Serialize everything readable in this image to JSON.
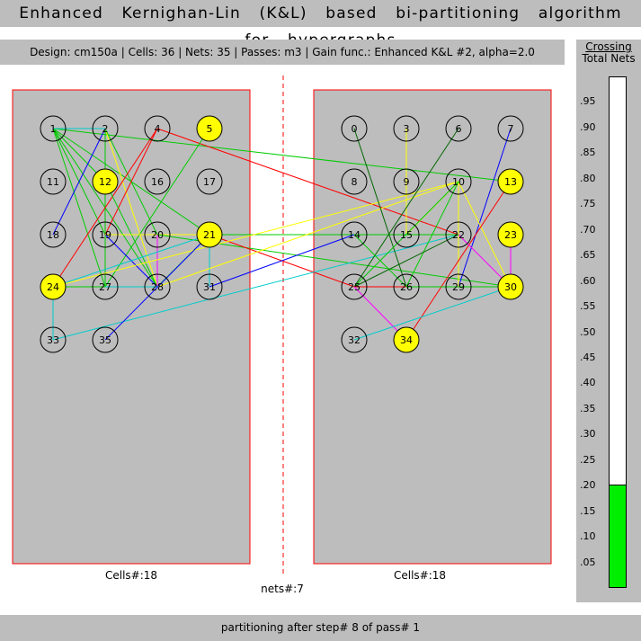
{
  "title": "Enhanced Kernighan-Lin (K&L) based bi-partitioning algorithm for hypergraphs",
  "info": "Design: cm150a  |  Cells: 36  |  Nets: 35  |  Passes: m3  |  Gain func.: Enhanced K&L #2, alpha=2.0",
  "side": {
    "title_top": "Crossing",
    "title_bottom": "Total Nets",
    "ratio": 0.2,
    "ticks": [
      ".95",
      ".90",
      ".85",
      ".80",
      ".75",
      ".70",
      ".65",
      ".60",
      ".55",
      ".50",
      ".45",
      ".40",
      ".35",
      ".30",
      ".25",
      ".20",
      ".15",
      ".10",
      ".05"
    ]
  },
  "left_count": "Cells#:18",
  "right_count": "Cells#:18",
  "nets_label": "nets#:7",
  "footer": "partitioning after step# 8 of pass# 1",
  "colors": {
    "panel": "#bdbdbd",
    "highlight": "#ffff00",
    "border": "#ff0000",
    "gauge": "#00ee00"
  },
  "cells": [
    {
      "id": "1",
      "side": "L",
      "col": 0,
      "row": 0,
      "hl": false
    },
    {
      "id": "2",
      "side": "L",
      "col": 1,
      "row": 0,
      "hl": false
    },
    {
      "id": "4",
      "side": "L",
      "col": 2,
      "row": 0,
      "hl": false
    },
    {
      "id": "5",
      "side": "L",
      "col": 3,
      "row": 0,
      "hl": true
    },
    {
      "id": "11",
      "side": "L",
      "col": 0,
      "row": 1,
      "hl": false
    },
    {
      "id": "12",
      "side": "L",
      "col": 1,
      "row": 1,
      "hl": true
    },
    {
      "id": "16",
      "side": "L",
      "col": 2,
      "row": 1,
      "hl": false
    },
    {
      "id": "17",
      "side": "L",
      "col": 3,
      "row": 1,
      "hl": false
    },
    {
      "id": "18",
      "side": "L",
      "col": 0,
      "row": 2,
      "hl": false
    },
    {
      "id": "19",
      "side": "L",
      "col": 1,
      "row": 2,
      "hl": false
    },
    {
      "id": "20",
      "side": "L",
      "col": 2,
      "row": 2,
      "hl": false
    },
    {
      "id": "21",
      "side": "L",
      "col": 3,
      "row": 2,
      "hl": true
    },
    {
      "id": "24",
      "side": "L",
      "col": 0,
      "row": 3,
      "hl": true
    },
    {
      "id": "27",
      "side": "L",
      "col": 1,
      "row": 3,
      "hl": false
    },
    {
      "id": "28",
      "side": "L",
      "col": 2,
      "row": 3,
      "hl": false
    },
    {
      "id": "31",
      "side": "L",
      "col": 3,
      "row": 3,
      "hl": false
    },
    {
      "id": "33",
      "side": "L",
      "col": 0,
      "row": 4,
      "hl": false
    },
    {
      "id": "35",
      "side": "L",
      "col": 1,
      "row": 4,
      "hl": false
    },
    {
      "id": "0",
      "side": "R",
      "col": 0,
      "row": 0,
      "hl": false
    },
    {
      "id": "3",
      "side": "R",
      "col": 1,
      "row": 0,
      "hl": false
    },
    {
      "id": "6",
      "side": "R",
      "col": 2,
      "row": 0,
      "hl": false
    },
    {
      "id": "7",
      "side": "R",
      "col": 3,
      "row": 0,
      "hl": false
    },
    {
      "id": "8",
      "side": "R",
      "col": 0,
      "row": 1,
      "hl": false
    },
    {
      "id": "9",
      "side": "R",
      "col": 1,
      "row": 1,
      "hl": false
    },
    {
      "id": "10",
      "side": "R",
      "col": 2,
      "row": 1,
      "hl": false
    },
    {
      "id": "13",
      "side": "R",
      "col": 3,
      "row": 1,
      "hl": true
    },
    {
      "id": "14",
      "side": "R",
      "col": 0,
      "row": 2,
      "hl": false
    },
    {
      "id": "15",
      "side": "R",
      "col": 1,
      "row": 2,
      "hl": false
    },
    {
      "id": "22",
      "side": "R",
      "col": 2,
      "row": 2,
      "hl": false
    },
    {
      "id": "23",
      "side": "R",
      "col": 3,
      "row": 2,
      "hl": true
    },
    {
      "id": "25",
      "side": "R",
      "col": 0,
      "row": 3,
      "hl": false
    },
    {
      "id": "26",
      "side": "R",
      "col": 1,
      "row": 3,
      "hl": false
    },
    {
      "id": "29",
      "side": "R",
      "col": 2,
      "row": 3,
      "hl": false
    },
    {
      "id": "30",
      "side": "R",
      "col": 3,
      "row": 3,
      "hl": true
    },
    {
      "id": "32",
      "side": "R",
      "col": 0,
      "row": 4,
      "hl": false
    },
    {
      "id": "34",
      "side": "R",
      "col": 1,
      "row": 4,
      "hl": true
    }
  ],
  "edges": [
    {
      "a": "1",
      "b": "2",
      "c": "#00cc00"
    },
    {
      "a": "1",
      "b": "12",
      "c": "#00cc00"
    },
    {
      "a": "1",
      "b": "19",
      "c": "#00cc00"
    },
    {
      "a": "1",
      "b": "27",
      "c": "#00cc00"
    },
    {
      "a": "1",
      "b": "28",
      "c": "#00cc00"
    },
    {
      "a": "1",
      "b": "13",
      "c": "#00cc00"
    },
    {
      "a": "1",
      "b": "21",
      "c": "#00cc00"
    },
    {
      "a": "2",
      "b": "1",
      "c": "#00cccc"
    },
    {
      "a": "2",
      "b": "18",
      "c": "#0000ff"
    },
    {
      "a": "2",
      "b": "27",
      "c": "#00cc00"
    },
    {
      "a": "2",
      "b": "28",
      "c": "#ffff00"
    },
    {
      "a": "2",
      "b": "20",
      "c": "#00cc00"
    },
    {
      "a": "4",
      "b": "24",
      "c": "#ff0000"
    },
    {
      "a": "4",
      "b": "19",
      "c": "#ff0000"
    },
    {
      "a": "4",
      "b": "22",
      "c": "#ff0000"
    },
    {
      "a": "5",
      "b": "27",
      "c": "#00cc00"
    },
    {
      "a": "12",
      "b": "28",
      "c": "#00cc00"
    },
    {
      "a": "19",
      "b": "28",
      "c": "#0000ff"
    },
    {
      "a": "19",
      "b": "22",
      "c": "#ffff00"
    },
    {
      "a": "20",
      "b": "28",
      "c": "#ff00ff"
    },
    {
      "a": "20",
      "b": "30",
      "c": "#00cc00"
    },
    {
      "a": "21",
      "b": "24",
      "c": "#00cccc"
    },
    {
      "a": "21",
      "b": "31",
      "c": "#00cccc"
    },
    {
      "a": "21",
      "b": "28",
      "c": "#00cc00"
    },
    {
      "a": "21",
      "b": "25",
      "c": "#ff0000"
    },
    {
      "a": "21",
      "b": "22",
      "c": "#00cc00"
    },
    {
      "a": "24",
      "b": "33",
      "c": "#00cccc"
    },
    {
      "a": "24",
      "b": "28",
      "c": "#00cccc"
    },
    {
      "a": "24",
      "b": "10",
      "c": "#ffff00"
    },
    {
      "a": "24",
      "b": "27",
      "c": "#00cc00"
    },
    {
      "a": "28",
      "b": "10",
      "c": "#ffff00"
    },
    {
      "a": "31",
      "b": "14",
      "c": "#0000ff"
    },
    {
      "a": "33",
      "b": "22",
      "c": "#00cccc"
    },
    {
      "a": "35",
      "b": "21",
      "c": "#0000ff"
    },
    {
      "a": "0",
      "b": "26",
      "c": "#006600"
    },
    {
      "a": "3",
      "b": "15",
      "c": "#ffff00"
    },
    {
      "a": "6",
      "b": "25",
      "c": "#006600"
    },
    {
      "a": "7",
      "b": "29",
      "c": "#0000ff"
    },
    {
      "a": "10",
      "b": "15",
      "c": "#ffff00"
    },
    {
      "a": "10",
      "b": "29",
      "c": "#ffff00"
    },
    {
      "a": "10",
      "b": "30",
      "c": "#ffff00"
    },
    {
      "a": "10",
      "b": "26",
      "c": "#00cc00"
    },
    {
      "a": "10",
      "b": "25",
      "c": "#00cc00"
    },
    {
      "a": "13",
      "b": "34",
      "c": "#ff0000"
    },
    {
      "a": "14",
      "b": "26",
      "c": "#00cc00"
    },
    {
      "a": "22",
      "b": "25",
      "c": "#006600"
    },
    {
      "a": "22",
      "b": "30",
      "c": "#ff00ff"
    },
    {
      "a": "23",
      "b": "30",
      "c": "#ff00ff"
    },
    {
      "a": "25",
      "b": "30",
      "c": "#ff0000"
    },
    {
      "a": "25",
      "b": "34",
      "c": "#ff00ff"
    },
    {
      "a": "26",
      "b": "30",
      "c": "#00cc00"
    },
    {
      "a": "30",
      "b": "32",
      "c": "#00cccc"
    },
    {
      "a": "15",
      "b": "22",
      "c": "#00cc00"
    }
  ]
}
